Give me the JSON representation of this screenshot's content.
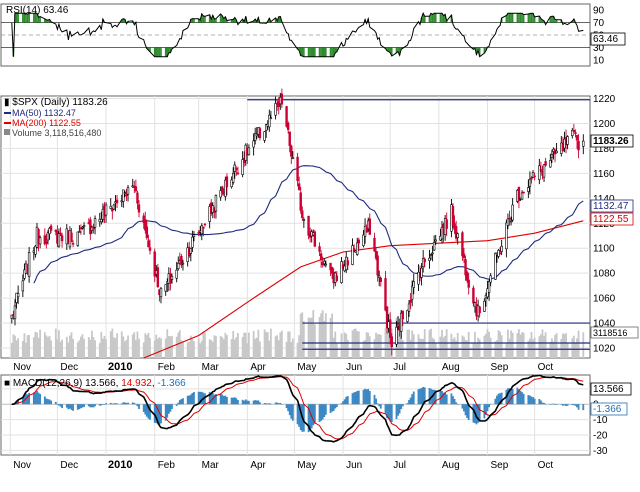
{
  "chart_data": [
    {
      "type": "line",
      "panel": "rsi",
      "label": "RSI(14)",
      "value_text": "63.46",
      "badge_text": "63.46",
      "ylim": [
        0,
        100
      ],
      "y_ticks": [
        "90",
        "70",
        "50",
        "30",
        "10"
      ],
      "reference_levels": [
        70,
        50,
        30
      ],
      "series_color": "#000000",
      "overbought_fill": "#2e8b2e",
      "oversold_fill": "#2e8b2e"
    },
    {
      "type": "candlestick",
      "panel": "price",
      "symbol_text": "$SPX (Daily)",
      "last_text": "1183.26",
      "badge_text": "1183.26",
      "ylim": [
        1012,
        1222
      ],
      "y_ticks": [
        "1220",
        "1200",
        "1180",
        "1160",
        "1140",
        "1120",
        "1100",
        "1080",
        "1060",
        "1040",
        "1020"
      ],
      "x_ticks": [
        "Nov",
        "Dec",
        "2010",
        "Feb",
        "Mar",
        "Apr",
        "May",
        "Jun",
        "Jul",
        "Aug",
        "Sep",
        "Oct"
      ],
      "up_color": "#000000",
      "down_color": "#cc0033",
      "legend": [
        {
          "name": "MA(50)",
          "value": "1132.47",
          "color": "#1f2a80"
        },
        {
          "name": "MA(200)",
          "value": "1122.55",
          "color": "#dd0000"
        },
        {
          "name": "Volume",
          "value": "3,118,516,480",
          "color": "#888888"
        }
      ],
      "ma50_badge": "1132.47",
      "ma200_badge": "1122.55",
      "volume_badge": "3118516",
      "key_points": [
        {
          "date": "2009-11-02",
          "close": 1045
        },
        {
          "date": "2009-11-18",
          "close": 1110
        },
        {
          "date": "2009-12-15",
          "close": 1110
        },
        {
          "date": "2010-01-19",
          "close": 1150
        },
        {
          "date": "2010-02-05",
          "close": 1063
        },
        {
          "date": "2010-02-25",
          "close": 1105
        },
        {
          "date": "2010-03-25",
          "close": 1165
        },
        {
          "date": "2010-04-23",
          "close": 1217
        },
        {
          "date": "2010-05-06",
          "close": 1128
        },
        {
          "date": "2010-05-25",
          "close": 1074
        },
        {
          "date": "2010-06-18",
          "close": 1117
        },
        {
          "date": "2010-07-02",
          "close": 1022
        },
        {
          "date": "2010-07-20",
          "close": 1083
        },
        {
          "date": "2010-08-09",
          "close": 1128
        },
        {
          "date": "2010-08-26",
          "close": 1047
        },
        {
          "date": "2010-09-20",
          "close": 1143
        },
        {
          "date": "2010-10-25",
          "close": 1188
        },
        {
          "date": "2010-11-01",
          "close": 1183
        }
      ],
      "horizontal_lines": [
        {
          "value": 1219,
          "start": "2010-04-01",
          "color": "#1f2a80"
        },
        {
          "value": 1040,
          "start": "2010-05-06",
          "color": "#1f2a80"
        },
        {
          "value": 1024,
          "start": "2010-05-06",
          "color": "#1f2a80"
        },
        {
          "value": 1019,
          "start": "2010-05-06",
          "color": "#1f2a80"
        }
      ]
    },
    {
      "type": "line",
      "panel": "macd",
      "label_prefix": "MACD(12,26,9)",
      "macd_text": "13.566",
      "signal_text": "14.932",
      "hist_text": "-1.366",
      "badge_macd": "13.566",
      "badge_hist": "-1.366",
      "ylim": [
        -33,
        19
      ],
      "y_ticks": [
        "10",
        "0",
        "-10",
        "-20",
        "-30"
      ],
      "x_ticks": [
        "Nov",
        "Dec",
        "2010",
        "Feb",
        "Mar",
        "Apr",
        "May",
        "Jun",
        "Jul",
        "Aug",
        "Sep",
        "Oct"
      ],
      "series": [
        {
          "name": "MACD",
          "color": "#000000"
        },
        {
          "name": "Signal",
          "color": "#dd0000"
        },
        {
          "name": "Histogram",
          "color": "#1f6fb5"
        }
      ]
    }
  ]
}
